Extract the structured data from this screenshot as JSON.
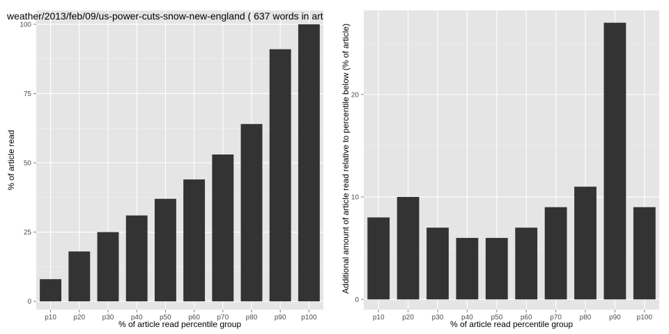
{
  "chart_data": [
    {
      "type": "bar",
      "title": "weather/2013/feb/09/us-power-cuts-snow-new-england ( 637 words in art",
      "xlabel": "% of article read percentile group",
      "ylabel": "% of article read",
      "categories": [
        "p10",
        "p20",
        "p30",
        "p40",
        "p50",
        "p60",
        "p70",
        "p80",
        "p90",
        "p100"
      ],
      "values": [
        8,
        18,
        25,
        31,
        37,
        44,
        53,
        64,
        91,
        100
      ],
      "ylim": [
        -3,
        105
      ],
      "yticks": [
        0,
        25,
        50,
        75,
        100
      ],
      "ytick_labels": [
        "0",
        "25",
        "50",
        "75",
        "100"
      ],
      "grid": true,
      "bar_color": "#333333",
      "panel_color": "#e5e5e5"
    },
    {
      "type": "bar",
      "title": "",
      "xlabel": "% of article read percentile group",
      "ylabel": "Additional amount of article read relative to percentile below (% of article)",
      "categories": [
        "p10",
        "p20",
        "p30",
        "p40",
        "p50",
        "p60",
        "p70",
        "p80",
        "p90",
        "p100"
      ],
      "values": [
        8,
        10,
        7,
        6,
        6,
        7,
        9,
        11,
        27,
        9
      ],
      "ylim": [
        -1,
        28.2
      ],
      "yticks": [
        0,
        10,
        20
      ],
      "ytick_labels": [
        "0",
        "10",
        "20"
      ],
      "grid": true,
      "bar_color": "#333333",
      "panel_color": "#e5e5e5"
    }
  ]
}
